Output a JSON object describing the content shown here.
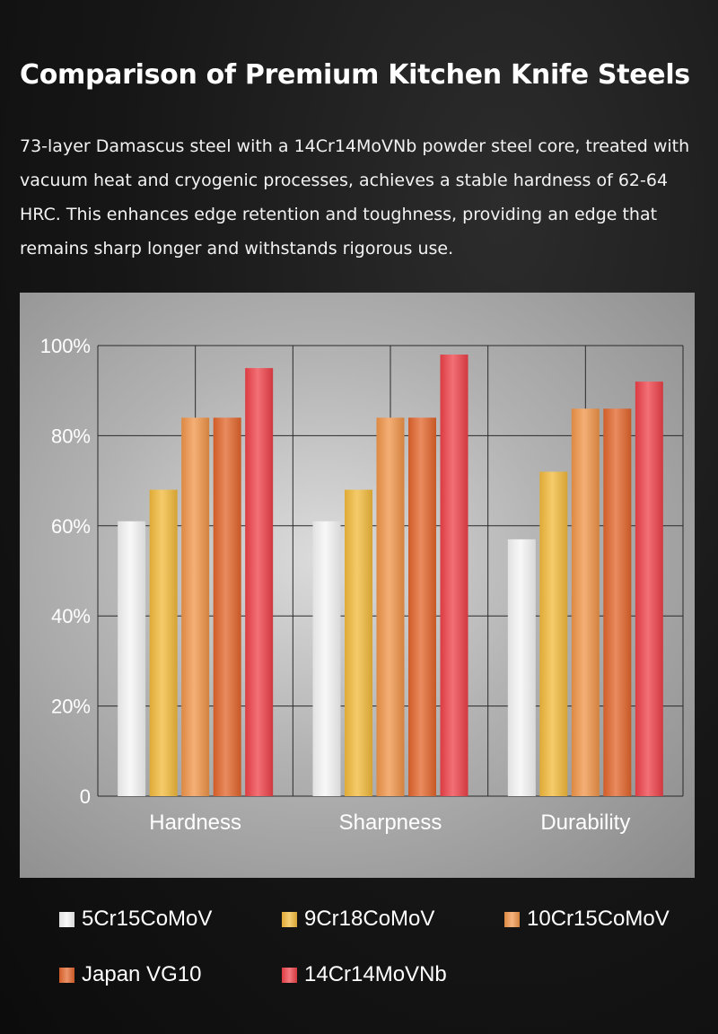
{
  "header": {
    "title": "Comparison of Premium Kitchen Knife Steels",
    "description": "73-layer Damascus steel with a 14Cr14MoVNb powder steel core, treated with vacuum heat and cryogenic processes, achieves a stable hardness of 62-64 HRC. This enhances edge retention and toughness, providing an edge that remains sharp longer and withstands rigorous use."
  },
  "chart_data": {
    "type": "bar",
    "title": "",
    "xlabel": "",
    "ylabel": "",
    "categories": [
      "Hardness",
      "Sharpness",
      "Durability"
    ],
    "ylim": [
      0,
      100
    ],
    "yticks": [
      "0",
      "20%",
      "40%",
      "60%",
      "80%",
      "100%"
    ],
    "grid": true,
    "legend_position": "bottom",
    "series": [
      {
        "name": "5Cr15CoMoV",
        "values": [
          61,
          61,
          57
        ],
        "color": "#f5f5f5"
      },
      {
        "name": "9Cr18CoMoV",
        "values": [
          68,
          68,
          72
        ],
        "color": "#f2b93a"
      },
      {
        "name": "10Cr15CoMoV",
        "values": [
          84,
          84,
          86
        ],
        "color": "#f09448"
      },
      {
        "name": "Japan VG10",
        "values": [
          84,
          84,
          86
        ],
        "color": "#e2642a"
      },
      {
        "name": "14Cr14MoVNb",
        "values": [
          95,
          98,
          92
        ],
        "color": "#ee4048"
      }
    ]
  }
}
